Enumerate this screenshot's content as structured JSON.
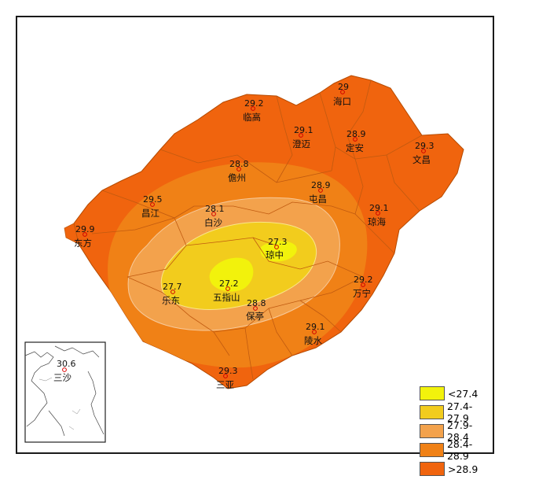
{
  "legend": {
    "items": [
      {
        "label": "<27.4",
        "color": "#f2f20c"
      },
      {
        "label": "27.4-27.9",
        "color": "#f2cc1d"
      },
      {
        "label": "27.9-28.4",
        "color": "#f3a24c"
      },
      {
        "label": "28.4-28.9",
        "color": "#f08116"
      },
      {
        "label": ">28.9",
        "color": "#f0640e"
      }
    ]
  },
  "stations": [
    {
      "name": "海口",
      "value": "29"
    },
    {
      "name": "临高",
      "value": "29.2"
    },
    {
      "name": "澄迈",
      "value": "29.1"
    },
    {
      "name": "定安",
      "value": "28.9"
    },
    {
      "name": "文昌",
      "value": "29.3"
    },
    {
      "name": "儋州",
      "value": "28.8"
    },
    {
      "name": "屯昌",
      "value": "28.9"
    },
    {
      "name": "昌江",
      "value": "29.5"
    },
    {
      "name": "白沙",
      "value": "28.1"
    },
    {
      "name": "琼海",
      "value": "29.1"
    },
    {
      "name": "东方",
      "value": "29.9"
    },
    {
      "name": "琼中",
      "value": "27.3"
    },
    {
      "name": "五指山",
      "value": "27.2"
    },
    {
      "name": "乐东",
      "value": "27.7"
    },
    {
      "name": "万宁",
      "value": "29.2"
    },
    {
      "name": "保亭",
      "value": "28.8"
    },
    {
      "name": "陵水",
      "value": "29.1"
    },
    {
      "name": "三亚",
      "value": "29.3"
    }
  ],
  "inset": {
    "name": "三沙",
    "value": "30.6"
  }
}
